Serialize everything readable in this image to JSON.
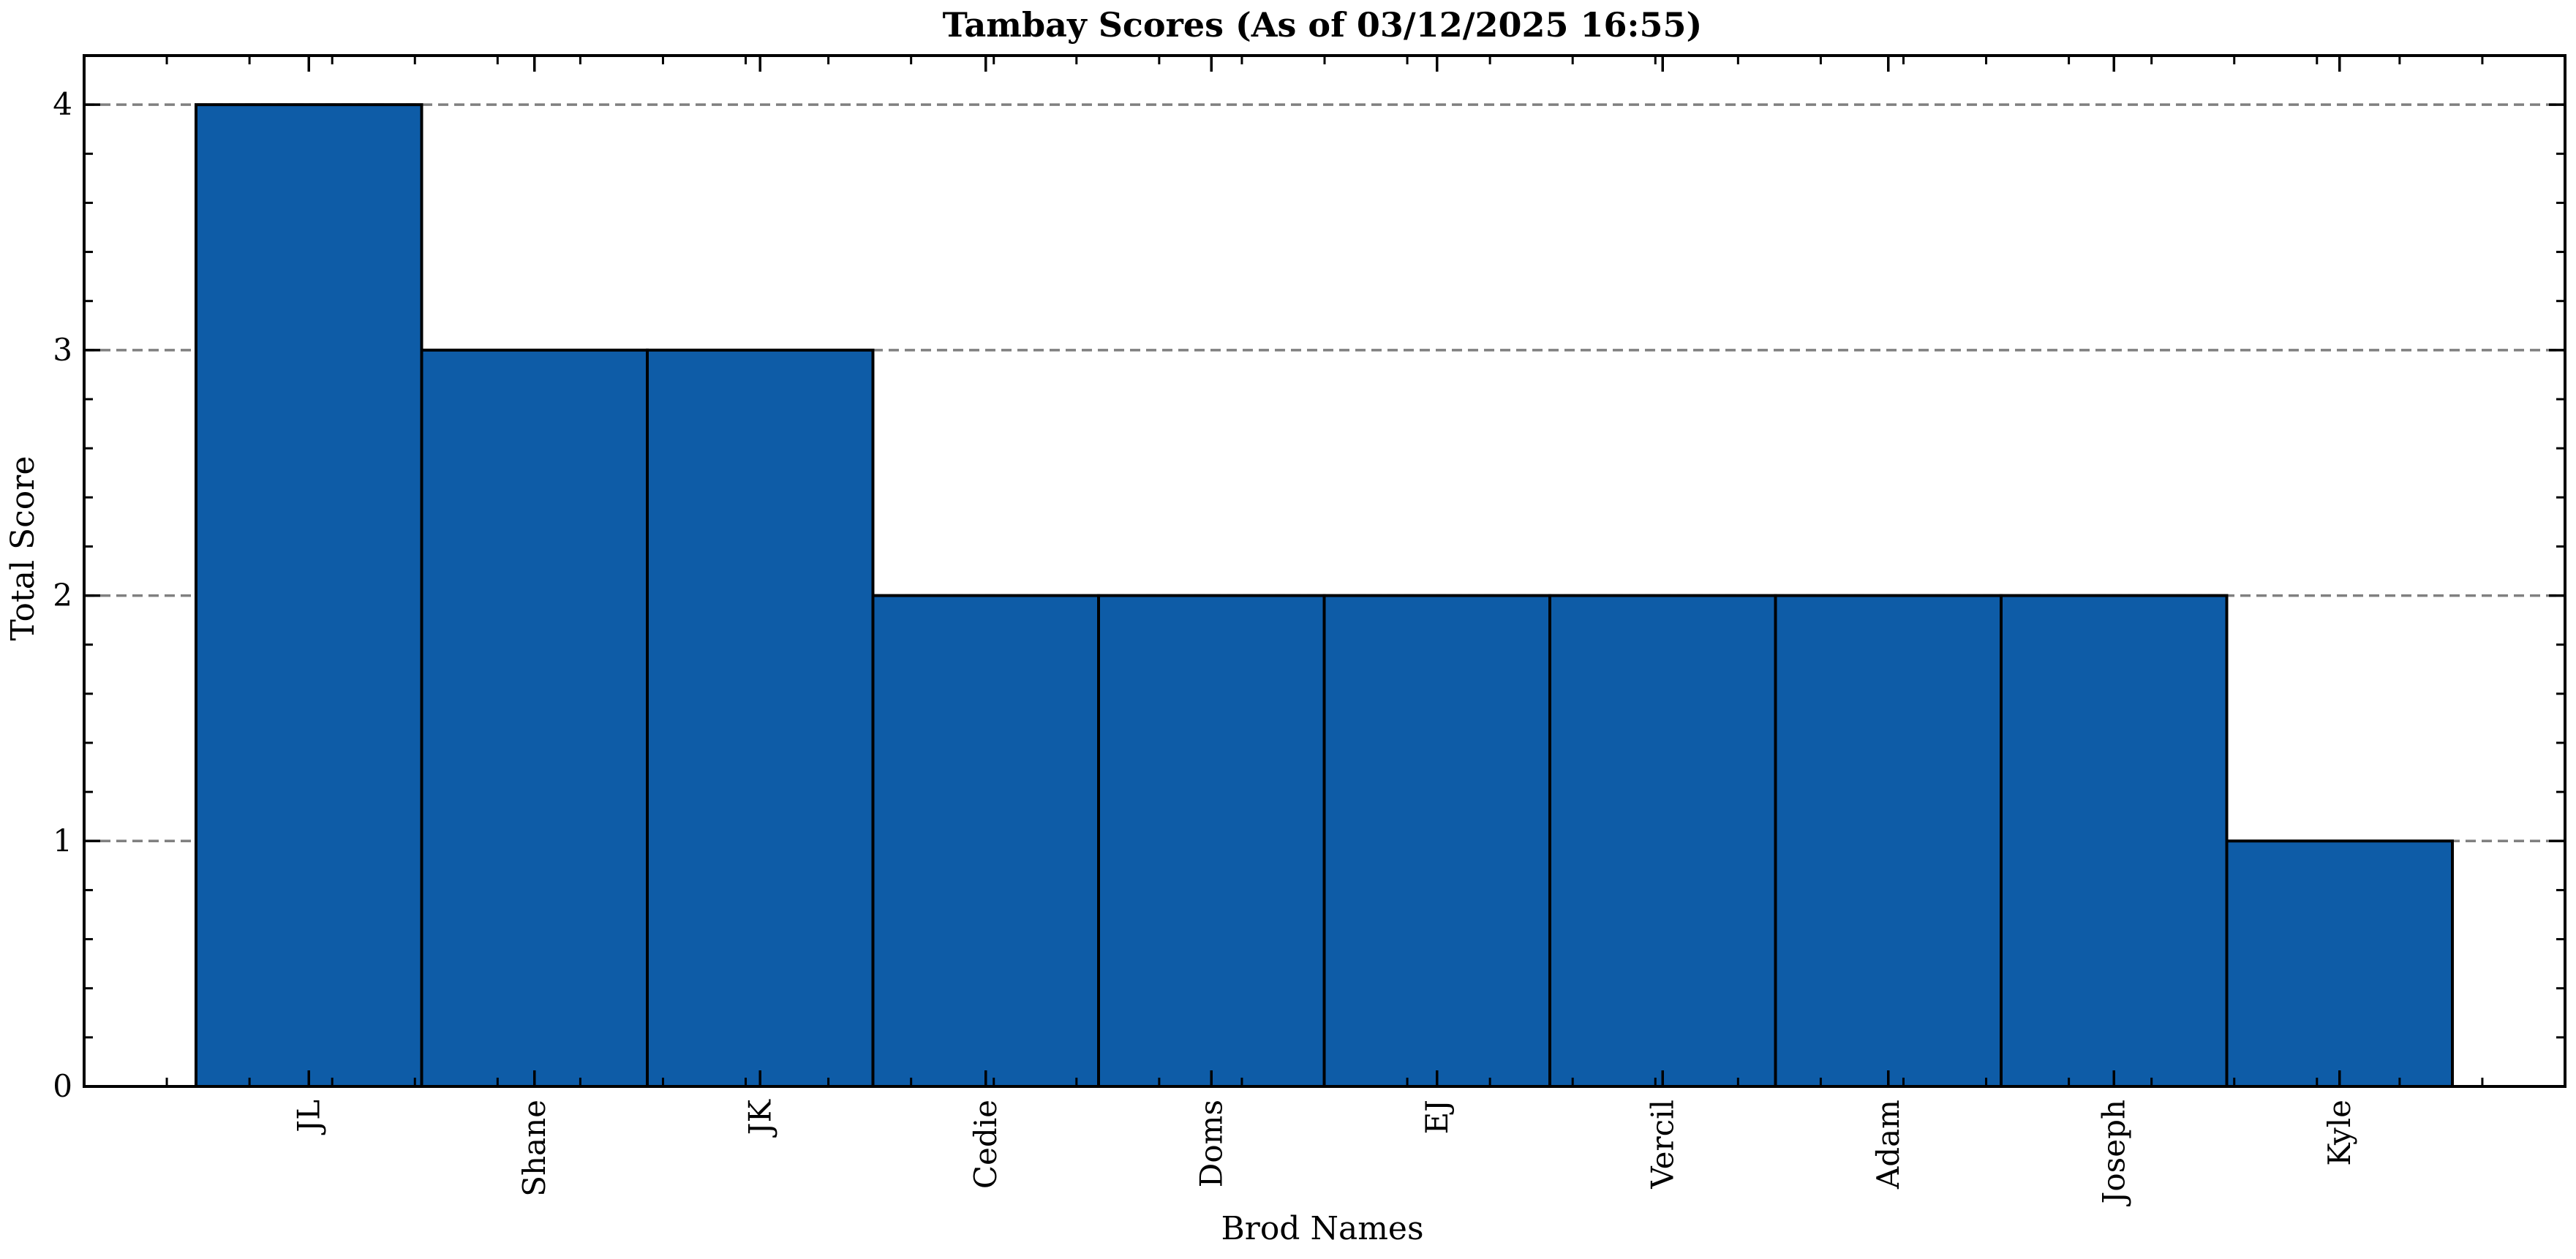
{
  "chart_data": {
    "type": "bar",
    "title": "Tambay Scores (As of 03/12/2025 16:55)",
    "xlabel": "Brod Names",
    "ylabel": "Total Score",
    "categories": [
      "JL",
      "Shane",
      "JK",
      "Cedie",
      "Doms",
      "EJ",
      "Vercil",
      "Adam",
      "Joseph",
      "Kyle"
    ],
    "values": [
      4,
      3,
      3,
      2,
      2,
      2,
      2,
      2,
      2,
      1
    ],
    "ylim": [
      0,
      4.2
    ],
    "yticks": [
      0,
      1,
      2,
      3,
      4
    ],
    "grid": "y-dashed",
    "colors": {
      "bar_fill": "#0e5ca7",
      "bar_edge": "#000000",
      "grid": "#808080",
      "axis": "#000000"
    }
  }
}
